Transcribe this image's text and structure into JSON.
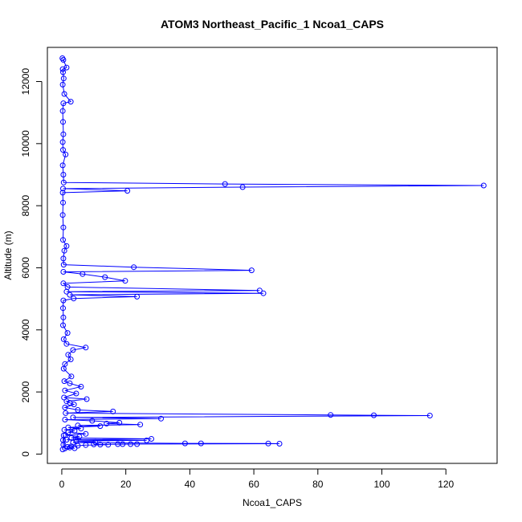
{
  "chart_data": {
    "type": "scatter",
    "title": "ATOM3 Northeast_Pacific_1 Ncoa1_CAPS",
    "xlabel": "Ncoa1_CAPS",
    "ylabel": "Altitude (m)",
    "xlim": [
      -4.5,
      136
    ],
    "ylim": [
      -300,
      13100
    ],
    "xticks": [
      0,
      20,
      40,
      60,
      80,
      100,
      120
    ],
    "yticks": [
      0,
      2000,
      4000,
      6000,
      8000,
      10000,
      12000
    ],
    "grid": false,
    "legend": "none",
    "colors": {
      "series": "#0000ff",
      "axis": "#000000"
    },
    "series": [
      {
        "points": [
          [
            0.2,
            12750
          ],
          [
            0.5,
            12700
          ],
          [
            1.5,
            12450
          ],
          [
            0.3,
            12400
          ],
          [
            0.4,
            12300
          ],
          [
            0.6,
            12100
          ],
          [
            0.3,
            11900
          ],
          [
            0.8,
            11600
          ],
          [
            2.8,
            11350
          ],
          [
            0.5,
            11300
          ],
          [
            0.3,
            11050
          ],
          [
            0.4,
            10700
          ],
          [
            0.5,
            10300
          ],
          [
            0.3,
            10050
          ],
          [
            0.4,
            9800
          ],
          [
            1.2,
            9650
          ],
          [
            0.3,
            9300
          ],
          [
            0.5,
            9000
          ],
          [
            0.6,
            8750
          ],
          [
            51.0,
            8700
          ],
          [
            131.8,
            8650
          ],
          [
            56.5,
            8600
          ],
          [
            0.4,
            8550
          ],
          [
            20.5,
            8480
          ],
          [
            0.3,
            8420
          ],
          [
            0.4,
            8100
          ],
          [
            0.3,
            7700
          ],
          [
            0.5,
            7300
          ],
          [
            0.4,
            6900
          ],
          [
            1.5,
            6700
          ],
          [
            0.8,
            6550
          ],
          [
            0.5,
            6300
          ],
          [
            0.6,
            6100
          ],
          [
            22.5,
            6020
          ],
          [
            59.3,
            5920
          ],
          [
            0.5,
            5870
          ],
          [
            6.5,
            5800
          ],
          [
            13.5,
            5700
          ],
          [
            19.8,
            5580
          ],
          [
            0.5,
            5500
          ],
          [
            1.8,
            5380
          ],
          [
            61.8,
            5270
          ],
          [
            1.5,
            5230
          ],
          [
            63.0,
            5180
          ],
          [
            2.5,
            5130
          ],
          [
            23.5,
            5070
          ],
          [
            3.7,
            5010
          ],
          [
            0.5,
            4950
          ],
          [
            0.4,
            4700
          ],
          [
            0.5,
            4400
          ],
          [
            0.4,
            4150
          ],
          [
            1.8,
            3900
          ],
          [
            0.6,
            3700
          ],
          [
            1.5,
            3550
          ],
          [
            7.5,
            3430
          ],
          [
            3.5,
            3350
          ],
          [
            2.0,
            3200
          ],
          [
            2.8,
            3050
          ],
          [
            1.0,
            2900
          ],
          [
            0.6,
            2750
          ],
          [
            3.0,
            2500
          ],
          [
            0.8,
            2350
          ],
          [
            2.5,
            2280
          ],
          [
            6.0,
            2170
          ],
          [
            1.0,
            2050
          ],
          [
            4.5,
            1950
          ],
          [
            0.7,
            1820
          ],
          [
            7.8,
            1770
          ],
          [
            1.5,
            1700
          ],
          [
            2.5,
            1650
          ],
          [
            3.8,
            1600
          ],
          [
            1.0,
            1500
          ],
          [
            5.0,
            1420
          ],
          [
            16.0,
            1370
          ],
          [
            1.2,
            1320
          ],
          [
            84.0,
            1260
          ],
          [
            97.5,
            1250
          ],
          [
            115.0,
            1240
          ],
          [
            3.5,
            1180
          ],
          [
            31.0,
            1140
          ],
          [
            1.0,
            1110
          ],
          [
            9.5,
            1070
          ],
          [
            18.0,
            1010
          ],
          [
            14.0,
            980
          ],
          [
            24.5,
            950
          ],
          [
            5.0,
            920
          ],
          [
            12.0,
            900
          ],
          [
            2.0,
            860
          ],
          [
            6.0,
            820
          ],
          [
            0.8,
            780
          ],
          [
            4.0,
            750
          ],
          [
            2.0,
            700
          ],
          [
            7.5,
            650
          ],
          [
            1.2,
            610
          ],
          [
            5.5,
            560
          ],
          [
            3.0,
            520
          ],
          [
            28.0,
            490
          ],
          [
            1.5,
            460
          ],
          [
            26.5,
            440
          ],
          [
            4.5,
            420
          ],
          [
            10.5,
            390
          ],
          [
            3.5,
            370
          ],
          [
            38.5,
            345
          ],
          [
            43.5,
            345
          ],
          [
            64.5,
            340
          ],
          [
            68.0,
            335
          ],
          [
            17.5,
            320
          ],
          [
            19.0,
            320
          ],
          [
            21.5,
            320
          ],
          [
            23.5,
            320
          ],
          [
            10.0,
            310
          ],
          [
            12.0,
            305
          ],
          [
            14.5,
            300
          ],
          [
            7.5,
            290
          ],
          [
            5.0,
            270
          ],
          [
            3.0,
            250
          ],
          [
            1.8,
            230
          ],
          [
            2.5,
            210
          ],
          [
            4.0,
            190
          ],
          [
            1.0,
            180
          ],
          [
            0.6,
            600
          ],
          [
            0.4,
            450
          ],
          [
            0.5,
            300
          ],
          [
            0.3,
            150
          ]
        ]
      }
    ]
  }
}
